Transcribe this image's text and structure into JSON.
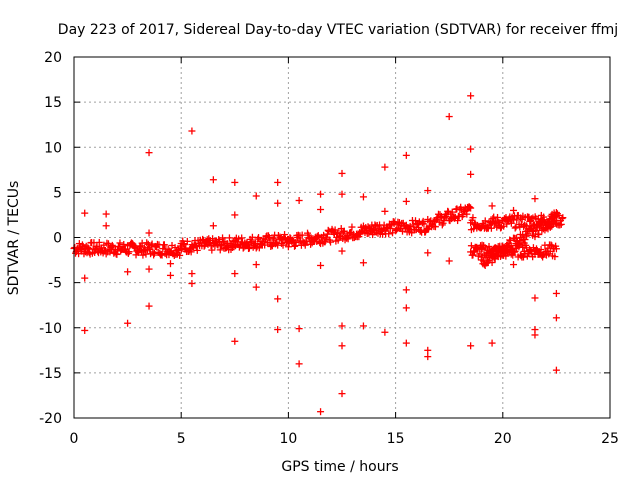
{
  "chart_data": {
    "type": "scatter",
    "title": "Day 223 of 2017, Sidereal Day-to-day VTEC variation (SDTVAR) for receiver ffmj",
    "xlabel": "GPS time / hours",
    "ylabel": "SDTVAR / TECUs",
    "xlim": [
      0,
      25
    ],
    "ylim": [
      -20,
      20
    ],
    "xticks": [
      "0",
      "5",
      "10",
      "15",
      "20",
      "25"
    ],
    "yticks": [
      "20",
      "15",
      "10",
      "5",
      "0",
      "-5",
      "-10",
      "-15",
      "-20"
    ],
    "grid": true,
    "marker": "+",
    "color": "#ff0000",
    "dense_segments": [
      {
        "x0": 0.0,
        "x1": 5.0,
        "y0": -1.2,
        "y1": -1.3
      },
      {
        "x0": 5.0,
        "x1": 10.0,
        "y0": -1.0,
        "y1": -0.3
      },
      {
        "x0": 10.0,
        "x1": 14.0,
        "y0": -0.5,
        "y1": 0.9
      },
      {
        "x0": 14.0,
        "x1": 16.5,
        "y0": 1.0,
        "y1": 1.3
      },
      {
        "x0": 16.5,
        "x1": 18.5,
        "y0": 1.6,
        "y1": 3.0
      },
      {
        "x0": 18.5,
        "x1": 22.8,
        "y0": 1.5,
        "y1": 2.0
      },
      {
        "x0": 18.5,
        "x1": 22.5,
        "y0": -1.5,
        "y1": -1.5
      },
      {
        "x0": 19.0,
        "x1": 22.5,
        "y0": -2.8,
        "y1": 2.2
      }
    ],
    "points": [
      [
        0.5,
        2.7
      ],
      [
        1.5,
        2.6
      ],
      [
        1.5,
        1.3
      ],
      [
        0.5,
        -4.5
      ],
      [
        0.5,
        -10.3
      ],
      [
        2.5,
        -3.8
      ],
      [
        2.5,
        -9.5
      ],
      [
        3.5,
        9.4
      ],
      [
        3.5,
        0.5
      ],
      [
        3.5,
        -3.5
      ],
      [
        3.5,
        -7.6
      ],
      [
        4.5,
        -2.9
      ],
      [
        4.5,
        -4.2
      ],
      [
        5.5,
        11.8
      ],
      [
        5.5,
        -4.0
      ],
      [
        5.5,
        -5.1
      ],
      [
        6.5,
        6.4
      ],
      [
        6.5,
        1.3
      ],
      [
        7.5,
        6.1
      ],
      [
        7.5,
        2.5
      ],
      [
        7.5,
        -4.0
      ],
      [
        7.5,
        -11.5
      ],
      [
        8.5,
        4.6
      ],
      [
        8.5,
        -3.0
      ],
      [
        8.5,
        -5.5
      ],
      [
        9.5,
        6.1
      ],
      [
        9.5,
        3.8
      ],
      [
        9.5,
        -6.8
      ],
      [
        9.5,
        -10.2
      ],
      [
        10.5,
        4.1
      ],
      [
        10.5,
        -10.1
      ],
      [
        10.5,
        -14.0
      ],
      [
        11.5,
        4.8
      ],
      [
        11.5,
        3.1
      ],
      [
        11.5,
        -3.1
      ],
      [
        11.5,
        -19.3
      ],
      [
        12.5,
        7.1
      ],
      [
        12.5,
        4.8
      ],
      [
        12.5,
        -1.5
      ],
      [
        12.5,
        -9.8
      ],
      [
        12.5,
        -12.0
      ],
      [
        12.5,
        -17.3
      ],
      [
        13.5,
        4.5
      ],
      [
        13.5,
        -2.8
      ],
      [
        13.5,
        -9.8
      ],
      [
        14.5,
        7.8
      ],
      [
        14.5,
        2.9
      ],
      [
        14.5,
        -10.5
      ],
      [
        15.5,
        9.1
      ],
      [
        15.5,
        4.0
      ],
      [
        15.5,
        -5.8
      ],
      [
        15.5,
        -7.8
      ],
      [
        15.5,
        -11.7
      ],
      [
        16.5,
        5.2
      ],
      [
        16.5,
        -1.7
      ],
      [
        16.5,
        -12.5
      ],
      [
        16.5,
        -13.2
      ],
      [
        17.5,
        13.4
      ],
      [
        17.5,
        -2.6
      ],
      [
        18.5,
        15.7
      ],
      [
        18.5,
        9.8
      ],
      [
        18.5,
        7.0
      ],
      [
        18.5,
        -12.0
      ],
      [
        19.5,
        3.5
      ],
      [
        19.5,
        -11.7
      ],
      [
        20.5,
        3.0
      ],
      [
        20.5,
        -3.0
      ],
      [
        21.5,
        4.3
      ],
      [
        21.5,
        -6.7
      ],
      [
        21.5,
        -10.2
      ],
      [
        21.5,
        -10.8
      ],
      [
        22.5,
        2.3
      ],
      [
        22.5,
        -6.2
      ],
      [
        22.5,
        -8.9
      ],
      [
        22.5,
        -14.7
      ]
    ]
  }
}
